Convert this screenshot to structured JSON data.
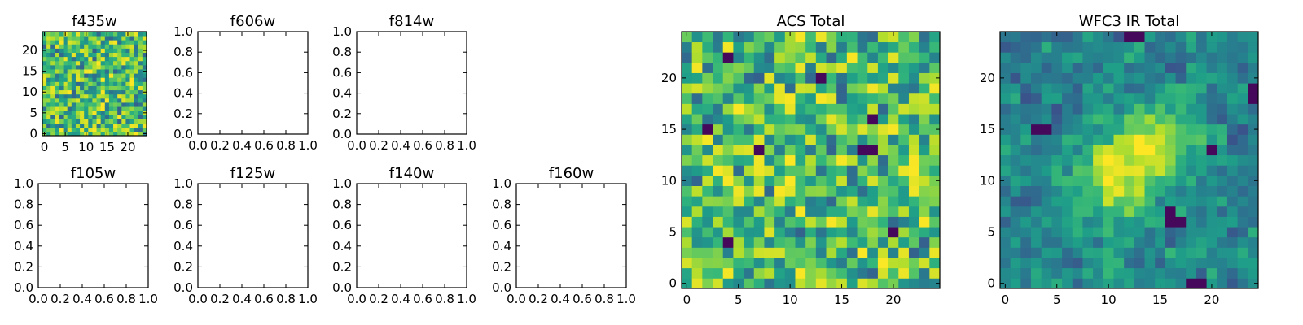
{
  "chart_data": [
    {
      "type": "heatmap",
      "title": "f435w",
      "xlim": [
        -0.5,
        24.5
      ],
      "ylim": [
        -0.5,
        24.5
      ],
      "xticks": [
        0,
        5,
        10,
        15,
        20
      ],
      "xtick_labels": [
        "0",
        "5",
        "10",
        "15",
        "20"
      ],
      "yticks": [
        0,
        5,
        10,
        15,
        20
      ],
      "ytick_labels": [
        "0",
        "5",
        "10",
        "15",
        "20"
      ],
      "grid_size": [
        25,
        25
      ],
      "colormap": "viridis",
      "pattern": "noise"
    },
    {
      "type": "empty",
      "title": "f606w",
      "xlim": [
        0,
        1
      ],
      "ylim": [
        0,
        1
      ],
      "xticks": [
        0,
        0.2,
        0.4,
        0.6,
        0.8,
        1.0
      ],
      "xtick_labels": [
        "0.0",
        "0.2",
        "0.4",
        "0.6",
        "0.8",
        "1.0"
      ],
      "yticks": [
        0,
        0.2,
        0.4,
        0.6,
        0.8,
        1.0
      ],
      "ytick_labels": [
        "0.0",
        "0.2",
        "0.4",
        "0.6",
        "0.8",
        "1.0"
      ]
    },
    {
      "type": "empty",
      "title": "f814w",
      "xlim": [
        0,
        1
      ],
      "ylim": [
        0,
        1
      ],
      "xticks": [
        0,
        0.2,
        0.4,
        0.6,
        0.8,
        1.0
      ],
      "xtick_labels": [
        "0.0",
        "0.2",
        "0.4",
        "0.6",
        "0.8",
        "1.0"
      ],
      "yticks": [
        0,
        0.2,
        0.4,
        0.6,
        0.8,
        1.0
      ],
      "ytick_labels": [
        "0.0",
        "0.2",
        "0.4",
        "0.6",
        "0.8",
        "1.0"
      ]
    },
    {
      "type": "empty",
      "title": "f105w",
      "xlim": [
        0,
        1
      ],
      "ylim": [
        0,
        1
      ],
      "xticks": [
        0,
        0.2,
        0.4,
        0.6,
        0.8,
        1.0
      ],
      "xtick_labels": [
        "0.0",
        "0.2",
        "0.4",
        "0.6",
        "0.8",
        "1.0"
      ],
      "yticks": [
        0,
        0.2,
        0.4,
        0.6,
        0.8,
        1.0
      ],
      "ytick_labels": [
        "0.0",
        "0.2",
        "0.4",
        "0.6",
        "0.8",
        "1.0"
      ]
    },
    {
      "type": "empty",
      "title": "f125w",
      "xlim": [
        0,
        1
      ],
      "ylim": [
        0,
        1
      ],
      "xticks": [
        0,
        0.2,
        0.4,
        0.6,
        0.8,
        1.0
      ],
      "xtick_labels": [
        "0.0",
        "0.2",
        "0.4",
        "0.6",
        "0.8",
        "1.0"
      ],
      "yticks": [
        0,
        0.2,
        0.4,
        0.6,
        0.8,
        1.0
      ],
      "ytick_labels": [
        "0.0",
        "0.2",
        "0.4",
        "0.6",
        "0.8",
        "1.0"
      ]
    },
    {
      "type": "empty",
      "title": "f140w",
      "xlim": [
        0,
        1
      ],
      "ylim": [
        0,
        1
      ],
      "xticks": [
        0,
        0.2,
        0.4,
        0.6,
        0.8,
        1.0
      ],
      "xtick_labels": [
        "0.0",
        "0.2",
        "0.4",
        "0.6",
        "0.8",
        "1.0"
      ],
      "yticks": [
        0,
        0.2,
        0.4,
        0.6,
        0.8,
        1.0
      ],
      "ytick_labels": [
        "0.0",
        "0.2",
        "0.4",
        "0.6",
        "0.8",
        "1.0"
      ]
    },
    {
      "type": "empty",
      "title": "f160w",
      "xlim": [
        0,
        1
      ],
      "ylim": [
        0,
        1
      ],
      "xticks": [
        0,
        0.2,
        0.4,
        0.6,
        0.8,
        1.0
      ],
      "xtick_labels": [
        "0.0",
        "0.2",
        "0.4",
        "0.6",
        "0.8",
        "1.0"
      ],
      "yticks": [
        0,
        0.2,
        0.4,
        0.6,
        0.8,
        1.0
      ],
      "ytick_labels": [
        "0.0",
        "0.2",
        "0.4",
        "0.6",
        "0.8",
        "1.0"
      ]
    },
    {
      "type": "heatmap",
      "title": "ACS Total",
      "xlim": [
        -0.5,
        24.5
      ],
      "ylim": [
        -0.5,
        24.5
      ],
      "xticks": [
        0,
        5,
        10,
        15,
        20
      ],
      "xtick_labels": [
        "0",
        "5",
        "10",
        "15",
        "20"
      ],
      "yticks": [
        0,
        5,
        10,
        15,
        20
      ],
      "ytick_labels": [
        "0",
        "5",
        "10",
        "15",
        "20"
      ],
      "grid_size": [
        25,
        25
      ],
      "colormap": "viridis",
      "pattern": "noise",
      "dark_pixels": [
        [
          4,
          22
        ],
        [
          13,
          20
        ],
        [
          18,
          16
        ],
        [
          17,
          13
        ],
        [
          18,
          13
        ],
        [
          2,
          15
        ],
        [
          7,
          13
        ],
        [
          20,
          5
        ],
        [
          4,
          4
        ]
      ]
    },
    {
      "type": "heatmap",
      "title": "WFC3 IR Total",
      "xlim": [
        -0.5,
        24.5
      ],
      "ylim": [
        -0.5,
        24.5
      ],
      "xticks": [
        0,
        5,
        10,
        15,
        20
      ],
      "xtick_labels": [
        "0",
        "5",
        "10",
        "15",
        "20"
      ],
      "yticks": [
        0,
        5,
        10,
        15,
        20
      ],
      "ytick_labels": [
        "0",
        "5",
        "10",
        "15",
        "20"
      ],
      "grid_size": [
        25,
        25
      ],
      "colormap": "viridis",
      "pattern": "smooth-source",
      "peak": {
        "x": 12.5,
        "y": 12.0
      },
      "dark_pixels": [
        [
          12,
          24
        ],
        [
          13,
          24
        ],
        [
          24,
          18
        ],
        [
          24,
          19
        ],
        [
          3,
          15
        ],
        [
          4,
          15
        ],
        [
          20,
          13
        ],
        [
          16,
          6
        ],
        [
          16,
          7
        ],
        [
          17,
          6
        ],
        [
          18,
          0
        ],
        [
          19,
          0
        ]
      ]
    }
  ]
}
